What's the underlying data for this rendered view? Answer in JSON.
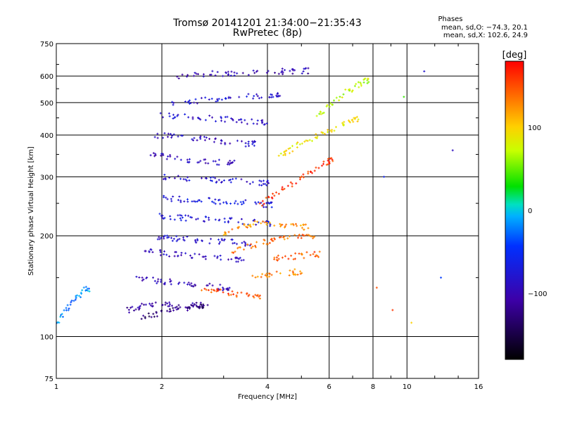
{
  "header": {
    "title": "Tromsø 20141201 21:34:00−21:35:43",
    "subtitle": "RwPretec (8p)"
  },
  "phases": {
    "title": "Phases",
    "o_stats": "mean, sd,O: −74.3, 20.1",
    "x_stats": "mean, sd,X: 102.6, 24.9"
  },
  "colorbar": {
    "label": "[deg]",
    "ticks": [
      "100",
      "0",
      "−100"
    ],
    "tick_values": [
      100,
      0,
      -100
    ],
    "range": [
      -180,
      180
    ]
  },
  "chart_data": {
    "type": "scatter",
    "xlabel": "Frequency [MHz]",
    "ylabel": "Stationary phase Virtual Height [km]",
    "xscale": "log",
    "yscale": "log",
    "xlim": [
      1,
      16
    ],
    "ylim": [
      75,
      750
    ],
    "xticks": [
      1,
      2,
      4,
      6,
      8,
      10,
      16
    ],
    "yticks": [
      75,
      100,
      200,
      300,
      400,
      500,
      600,
      750
    ],
    "grid": true,
    "color_encodes": "phase (deg)",
    "traces": [
      {
        "x": [
          1.0,
          1.05,
          1.1,
          1.15,
          1.2
        ],
        "y": [
          110,
          118,
          126,
          132,
          138
        ],
        "phase": -20
      },
      {
        "x": [
          1.6,
          1.7,
          1.8,
          1.95,
          2.1,
          2.3,
          2.5
        ],
        "y": [
          120,
          122,
          124,
          126,
          124,
          122,
          124
        ],
        "phase": -110
      },
      {
        "x": [
          1.75,
          1.9,
          2.05,
          2.2,
          2.4,
          2.6
        ],
        "y": [
          115,
          116,
          118,
          120,
          122,
          124
        ],
        "phase": -130
      },
      {
        "x": [
          1.7,
          1.85,
          2.0,
          2.2,
          2.4,
          2.7,
          3.0
        ],
        "y": [
          150,
          148,
          146,
          145,
          144,
          142,
          140
        ],
        "phase": -100
      },
      {
        "x": [
          1.8,
          1.95,
          2.1,
          2.3,
          2.6,
          2.9,
          3.3
        ],
        "y": [
          180,
          178,
          176,
          175,
          173,
          172,
          170
        ],
        "phase": -90
      },
      {
        "x": [
          1.9,
          2.05,
          2.2,
          2.4,
          2.7,
          3.0,
          3.4
        ],
        "y": [
          200,
          198,
          196,
          195,
          193,
          192,
          190
        ],
        "phase": -85
      },
      {
        "x": [
          1.95,
          2.1,
          2.3,
          2.5,
          2.8,
          3.1,
          3.5,
          3.9
        ],
        "y": [
          230,
          228,
          226,
          225,
          224,
          222,
          220,
          218
        ],
        "phase": -75
      },
      {
        "x": [
          2.0,
          2.2,
          2.4,
          2.6,
          2.9,
          3.2,
          3.6,
          4.0
        ],
        "y": [
          260,
          258,
          256,
          255,
          254,
          252,
          250,
          248
        ],
        "phase": -70
      },
      {
        "x": [
          2.0,
          2.2,
          2.5,
          2.8,
          3.1,
          3.5,
          3.9
        ],
        "y": [
          300,
          298,
          296,
          294,
          292,
          290,
          288
        ],
        "phase": -80
      },
      {
        "x": [
          1.8,
          2.0,
          2.2,
          2.5,
          2.8,
          3.1
        ],
        "y": [
          350,
          345,
          340,
          336,
          332,
          330
        ],
        "phase": -95
      },
      {
        "x": [
          1.9,
          2.1,
          2.3,
          2.6,
          2.9,
          3.2,
          3.6
        ],
        "y": [
          400,
          396,
          392,
          388,
          384,
          380,
          376
        ],
        "phase": -90
      },
      {
        "x": [
          2.0,
          2.2,
          2.5,
          2.8,
          3.1,
          3.4,
          3.8
        ],
        "y": [
          460,
          455,
          452,
          448,
          444,
          440,
          436
        ],
        "phase": -85
      },
      {
        "x": [
          2.1,
          2.4,
          2.7,
          3.0,
          3.4,
          3.8,
          4.2
        ],
        "y": [
          500,
          505,
          510,
          515,
          520,
          525,
          530
        ],
        "phase": -80
      },
      {
        "x": [
          2.2,
          2.5,
          2.8,
          3.1,
          3.5,
          4.0,
          4.5,
          5.0
        ],
        "y": [
          600,
          605,
          610,
          612,
          615,
          618,
          620,
          622
        ],
        "phase": -100
      },
      {
        "x": [
          2.6,
          2.8,
          3.0,
          3.3,
          3.7
        ],
        "y": [
          140,
          138,
          136,
          134,
          132
        ],
        "phase": 150
      },
      {
        "x": [
          3.0,
          3.2,
          3.5,
          3.8,
          4.2,
          4.6,
          5.0
        ],
        "y": [
          200,
          210,
          215,
          220,
          218,
          215,
          212
        ],
        "phase": 125
      },
      {
        "x": [
          3.2,
          3.5,
          3.8,
          4.1,
          4.4,
          4.8,
          5.2
        ],
        "y": [
          180,
          185,
          190,
          194,
          196,
          198,
          200
        ],
        "phase": 140
      },
      {
        "x": [
          3.8,
          4.1,
          4.4,
          4.8,
          5.2,
          5.6,
          6.0
        ],
        "y": [
          250,
          262,
          275,
          290,
          305,
          320,
          335
        ],
        "phase": 160
      },
      {
        "x": [
          4.2,
          4.5,
          4.8,
          5.2,
          5.6,
          6.1,
          6.6,
          7.0
        ],
        "y": [
          340,
          355,
          370,
          385,
          400,
          415,
          430,
          445
        ],
        "phase": 90
      },
      {
        "x": [
          5.5,
          5.9,
          6.3,
          6.8,
          7.2,
          7.6
        ],
        "y": [
          450,
          480,
          510,
          540,
          560,
          580
        ],
        "phase": 70
      },
      {
        "x": [
          3.6,
          4.0,
          4.4,
          4.8
        ],
        "y": [
          150,
          152,
          154,
          156
        ],
        "phase": 130
      },
      {
        "x": [
          4.0,
          4.4,
          4.9,
          5.4
        ],
        "y": [
          170,
          172,
          174,
          176
        ],
        "phase": 145
      }
    ],
    "isolated_points": [
      {
        "x": 8.2,
        "y": 140,
        "phase": 150
      },
      {
        "x": 9.1,
        "y": 120,
        "phase": 160
      },
      {
        "x": 10.3,
        "y": 110,
        "phase": 100
      },
      {
        "x": 12.5,
        "y": 150,
        "phase": -40
      },
      {
        "x": 13.5,
        "y": 360,
        "phase": -90
      },
      {
        "x": 11.2,
        "y": 620,
        "phase": -80
      },
      {
        "x": 9.8,
        "y": 520,
        "phase": 40
      },
      {
        "x": 8.6,
        "y": 300,
        "phase": -60
      }
    ]
  }
}
